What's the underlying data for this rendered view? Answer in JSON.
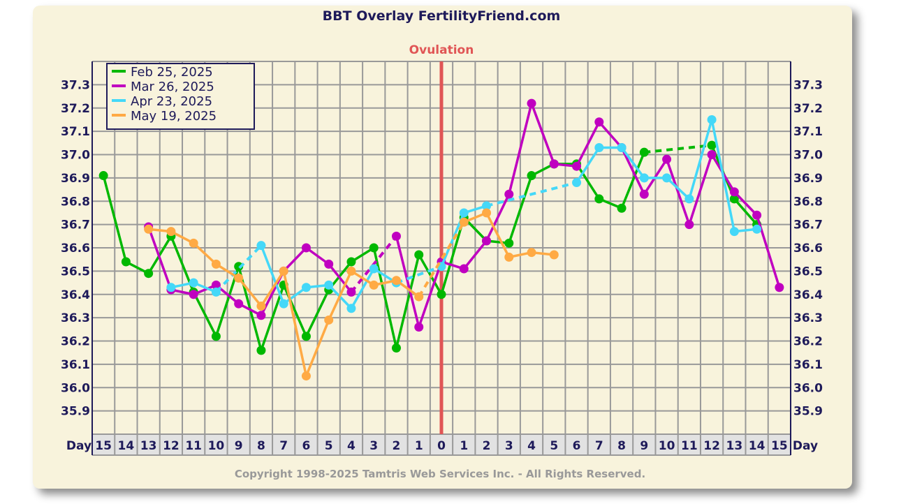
{
  "chart_data": {
    "type": "line",
    "title": "BBT Overlay FertilityFriend.com",
    "annotation": "Ovulation",
    "xlabel": "Day",
    "x": [
      -15,
      -14,
      -13,
      -12,
      -11,
      -10,
      -9,
      -8,
      -7,
      -6,
      -5,
      -4,
      -3,
      -2,
      -1,
      0,
      1,
      2,
      3,
      4,
      5,
      6,
      7,
      8,
      9,
      10,
      11,
      12,
      13,
      14,
      15
    ],
    "x_tick_labels": [
      "15",
      "14",
      "13",
      "12",
      "11",
      "10",
      "9",
      "8",
      "7",
      "6",
      "5",
      "4",
      "3",
      "2",
      "1",
      "0",
      "1",
      "2",
      "3",
      "4",
      "5",
      "6",
      "7",
      "8",
      "9",
      "10",
      "11",
      "12",
      "13",
      "14",
      "15"
    ],
    "ylim": [
      35.8,
      37.4
    ],
    "y_ticks": [
      "35.9",
      "36.0",
      "36.1",
      "36.2",
      "36.3",
      "36.4",
      "36.5",
      "36.6",
      "36.7",
      "36.8",
      "36.9",
      "37.0",
      "37.1",
      "37.2",
      "37.3"
    ],
    "grid": true,
    "legend_position": "top-left",
    "series": [
      {
        "name": "Feb 25, 2025",
        "color": "#00b800",
        "values": [
          36.91,
          36.54,
          36.49,
          36.65,
          36.41,
          36.22,
          36.52,
          36.16,
          36.44,
          36.22,
          36.42,
          36.54,
          36.6,
          36.17,
          36.57,
          36.4,
          36.73,
          36.63,
          36.62,
          36.91,
          36.96,
          36.96,
          36.81,
          36.77,
          37.01,
          null,
          null,
          37.04,
          36.81,
          36.7,
          null
        ]
      },
      {
        "name": "Mar 26, 2025",
        "color": "#c000c0",
        "values": [
          null,
          null,
          36.69,
          36.42,
          36.4,
          36.44,
          36.36,
          36.31,
          36.5,
          36.6,
          36.53,
          36.41,
          null,
          36.65,
          36.26,
          36.54,
          36.51,
          36.63,
          36.83,
          37.22,
          36.96,
          36.95,
          37.14,
          37.03,
          36.83,
          36.98,
          36.7,
          37.0,
          36.84,
          36.74,
          36.43
        ]
      },
      {
        "name": "Apr 23, 2025",
        "color": "#44d8f8",
        "values": [
          null,
          null,
          null,
          36.43,
          36.45,
          36.41,
          null,
          36.61,
          36.36,
          36.43,
          36.44,
          36.34,
          36.51,
          36.45,
          null,
          36.52,
          36.75,
          36.78,
          null,
          null,
          null,
          36.88,
          37.03,
          37.03,
          36.9,
          36.9,
          36.81,
          37.15,
          36.67,
          36.68,
          null
        ]
      },
      {
        "name": "May 19, 2025",
        "color": "#ffaa44",
        "values": [
          null,
          null,
          36.68,
          36.67,
          36.62,
          36.53,
          36.47,
          36.35,
          36.5,
          36.05,
          36.29,
          36.5,
          36.44,
          36.46,
          36.39,
          null,
          36.71,
          36.75,
          36.56,
          36.58,
          36.57,
          null,
          null,
          null,
          null,
          null,
          null,
          null,
          null,
          null,
          null
        ]
      }
    ],
    "ovulation_day": 0,
    "ovulation_color": "#e05555"
  },
  "footer": {
    "copyright": "Copyright 1998-2025 Tamtris Web Services Inc. - All Rights Reserved."
  }
}
